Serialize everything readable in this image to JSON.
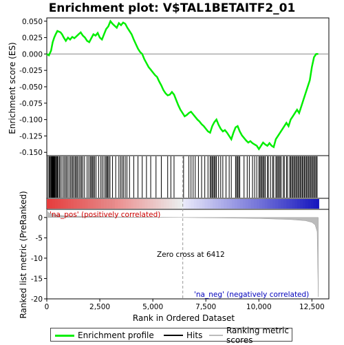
{
  "chart_data": {
    "type": "line",
    "title": "Enrichment plot: V$TAL1BETAITF2_01",
    "top_panel": {
      "ylabel": "Enrichment score (ES)",
      "ylim": [
        -0.155,
        0.055
      ],
      "yticks": [
        "0.050",
        "0.025",
        "0.000",
        "-0.025",
        "-0.050",
        "-0.075",
        "-0.100",
        "-0.125",
        "-0.150"
      ],
      "ytick_values": [
        0.05,
        0.025,
        0.0,
        -0.025,
        -0.05,
        -0.075,
        -0.1,
        -0.125,
        -0.15
      ],
      "series": [
        {
          "name": "Enrichment profile",
          "color": "#00ee00",
          "x": [
            0,
            100,
            200,
            280,
            350,
            420,
            500,
            580,
            650,
            720,
            800,
            900,
            1000,
            1100,
            1200,
            1300,
            1400,
            1500,
            1600,
            1700,
            1800,
            1900,
            2000,
            2100,
            2200,
            2300,
            2400,
            2500,
            2600,
            2700,
            2800,
            2900,
            3000,
            3100,
            3200,
            3300,
            3400,
            3500,
            3600,
            3700,
            3800,
            3900,
            4000,
            4100,
            4200,
            4300,
            4400,
            4500,
            4600,
            4700,
            4800,
            4900,
            5000,
            5100,
            5200,
            5300,
            5400,
            5500,
            5600,
            5700,
            5800,
            5900,
            6000,
            6100,
            6200,
            6300,
            6400,
            6500,
            6600,
            6700,
            6800,
            6900,
            7000,
            7100,
            7200,
            7300,
            7400,
            7500,
            7600,
            7700,
            7800,
            7900,
            8000,
            8100,
            8200,
            8300,
            8400,
            8500,
            8600,
            8700,
            8800,
            8900,
            9000,
            9100,
            9200,
            9300,
            9400,
            9500,
            9600,
            9700,
            9800,
            9900,
            10000,
            10100,
            10200,
            10300,
            10400,
            10500,
            10600,
            10700,
            10800,
            10900,
            11000,
            11100,
            11200,
            11300,
            11400,
            11500,
            11600,
            11700,
            11800,
            11900,
            12000,
            12100,
            12200,
            12300,
            12400,
            12500,
            12600,
            12700,
            12800
          ],
          "y": [
            0.0,
            -0.002,
            0.005,
            0.018,
            0.025,
            0.03,
            0.035,
            0.034,
            0.033,
            0.03,
            0.025,
            0.02,
            0.025,
            0.022,
            0.026,
            0.024,
            0.027,
            0.03,
            0.033,
            0.028,
            0.025,
            0.02,
            0.018,
            0.024,
            0.03,
            0.028,
            0.032,
            0.025,
            0.022,
            0.03,
            0.038,
            0.042,
            0.05,
            0.046,
            0.043,
            0.04,
            0.047,
            0.044,
            0.048,
            0.046,
            0.04,
            0.035,
            0.03,
            0.022,
            0.015,
            0.008,
            0.003,
            0.0,
            -0.008,
            -0.014,
            -0.02,
            -0.024,
            -0.028,
            -0.032,
            -0.035,
            -0.042,
            -0.048,
            -0.055,
            -0.06,
            -0.063,
            -0.062,
            -0.058,
            -0.062,
            -0.07,
            -0.078,
            -0.085,
            -0.09,
            -0.095,
            -0.093,
            -0.09,
            -0.088,
            -0.092,
            -0.096,
            -0.1,
            -0.103,
            -0.107,
            -0.11,
            -0.114,
            -0.118,
            -0.12,
            -0.11,
            -0.104,
            -0.1,
            -0.108,
            -0.114,
            -0.118,
            -0.116,
            -0.12,
            -0.125,
            -0.13,
            -0.12,
            -0.112,
            -0.11,
            -0.118,
            -0.124,
            -0.128,
            -0.132,
            -0.135,
            -0.133,
            -0.136,
            -0.138,
            -0.14,
            -0.145,
            -0.14,
            -0.135,
            -0.138,
            -0.14,
            -0.136,
            -0.14,
            -0.142,
            -0.13,
            -0.125,
            -0.12,
            -0.115,
            -0.11,
            -0.105,
            -0.11,
            -0.1,
            -0.095,
            -0.09,
            -0.085,
            -0.09,
            -0.08,
            -0.07,
            -0.06,
            -0.05,
            -0.04,
            -0.02,
            -0.005,
            0.0,
            0.0
          ]
        }
      ],
      "hits_label": "Hits"
    },
    "middle_panel": {
      "hits_x": [
        60,
        120,
        150,
        190,
        220,
        240,
        260,
        280,
        300,
        320,
        340,
        360,
        390,
        430,
        460,
        500,
        540,
        600,
        650,
        720,
        800,
        860,
        920,
        980,
        1050,
        1120,
        1180,
        1230,
        1290,
        1350,
        1400,
        1450,
        1520,
        1580,
        1640,
        1700,
        1780,
        1900,
        1980,
        2050,
        2100,
        2150,
        2200,
        2250,
        2320,
        2450,
        2550,
        2620,
        2700,
        2780,
        2820,
        2870,
        2920,
        2980,
        3100,
        3250,
        3400,
        3480,
        3550,
        3620,
        3700,
        3780,
        3900,
        4100,
        4300,
        4500,
        4700,
        4900,
        5150,
        5400,
        5700,
        5850,
        6000,
        6450,
        6700,
        6800,
        6900,
        7000,
        7150,
        7300,
        7450,
        7600,
        7700,
        7750,
        7800,
        7850,
        7900,
        7950,
        8000,
        8100,
        8200,
        8300,
        8450,
        8600,
        8700,
        8900,
        8950,
        9000,
        9050,
        9100,
        9300,
        9450,
        9550,
        9700,
        9800,
        9900,
        10000,
        10050,
        10100,
        10150,
        10200,
        10250,
        10300,
        10400,
        10450,
        10550,
        10650,
        10700,
        10800,
        10850,
        10900,
        10950,
        11000,
        11050,
        11150,
        11200,
        11300,
        11350,
        11450,
        11500,
        11550,
        11600,
        11650,
        11700,
        11750,
        11800,
        11850,
        11900,
        11950,
        12000,
        12050,
        12100,
        12150,
        12200,
        12250,
        12300,
        12350,
        12400,
        12450,
        12500,
        12550,
        12600,
        12650,
        12700,
        12750
      ]
    },
    "bottom_panel": {
      "ylabel": "Ranked list metric (PreRanked)",
      "xlabel": "Rank in Ordered Dataset",
      "ylim": [
        -20,
        2
      ],
      "yticks": [
        "0",
        "-5",
        "-10",
        "-15",
        "-20"
      ],
      "ytick_values": [
        0,
        -5,
        -10,
        -15,
        -20
      ],
      "xlim": [
        0,
        13300
      ],
      "xticks": [
        "0",
        "2,500",
        "5,000",
        "7,500",
        "10,000",
        "12,500"
      ],
      "xtick_values": [
        0,
        2500,
        5000,
        7500,
        10000,
        12500
      ],
      "metric_x": [
        0,
        50,
        150,
        300,
        500,
        800,
        1200,
        2000,
        3000,
        4500,
        6412,
        8000,
        10000,
        11500,
        12200,
        12500,
        12650,
        12750,
        12800
      ],
      "metric_y": [
        2.0,
        1.3,
        1.0,
        0.8,
        0.6,
        0.45,
        0.35,
        0.25,
        0.15,
        0.08,
        0.0,
        -0.1,
        -0.25,
        -0.5,
        -0.8,
        -1.2,
        -1.8,
        -3.5,
        -19.5
      ],
      "zero_cross_rank": 6412,
      "zero_cross_label": "Zero cross at 6412",
      "pos_label": "'na_pos' (positively correlated)",
      "neg_label": "'na_neg' (negatively correlated)"
    },
    "legend": [
      {
        "label": "Enrichment profile",
        "color": "#00ee00"
      },
      {
        "label": "Hits",
        "color": "#000000"
      },
      {
        "label": "Ranking metric scores",
        "color": "#bbbbbb"
      }
    ],
    "colors": {
      "positive": "#dd0000",
      "negative": "#0000dd",
      "pos_text": "#cc0000",
      "neg_text": "#0000bb"
    }
  }
}
